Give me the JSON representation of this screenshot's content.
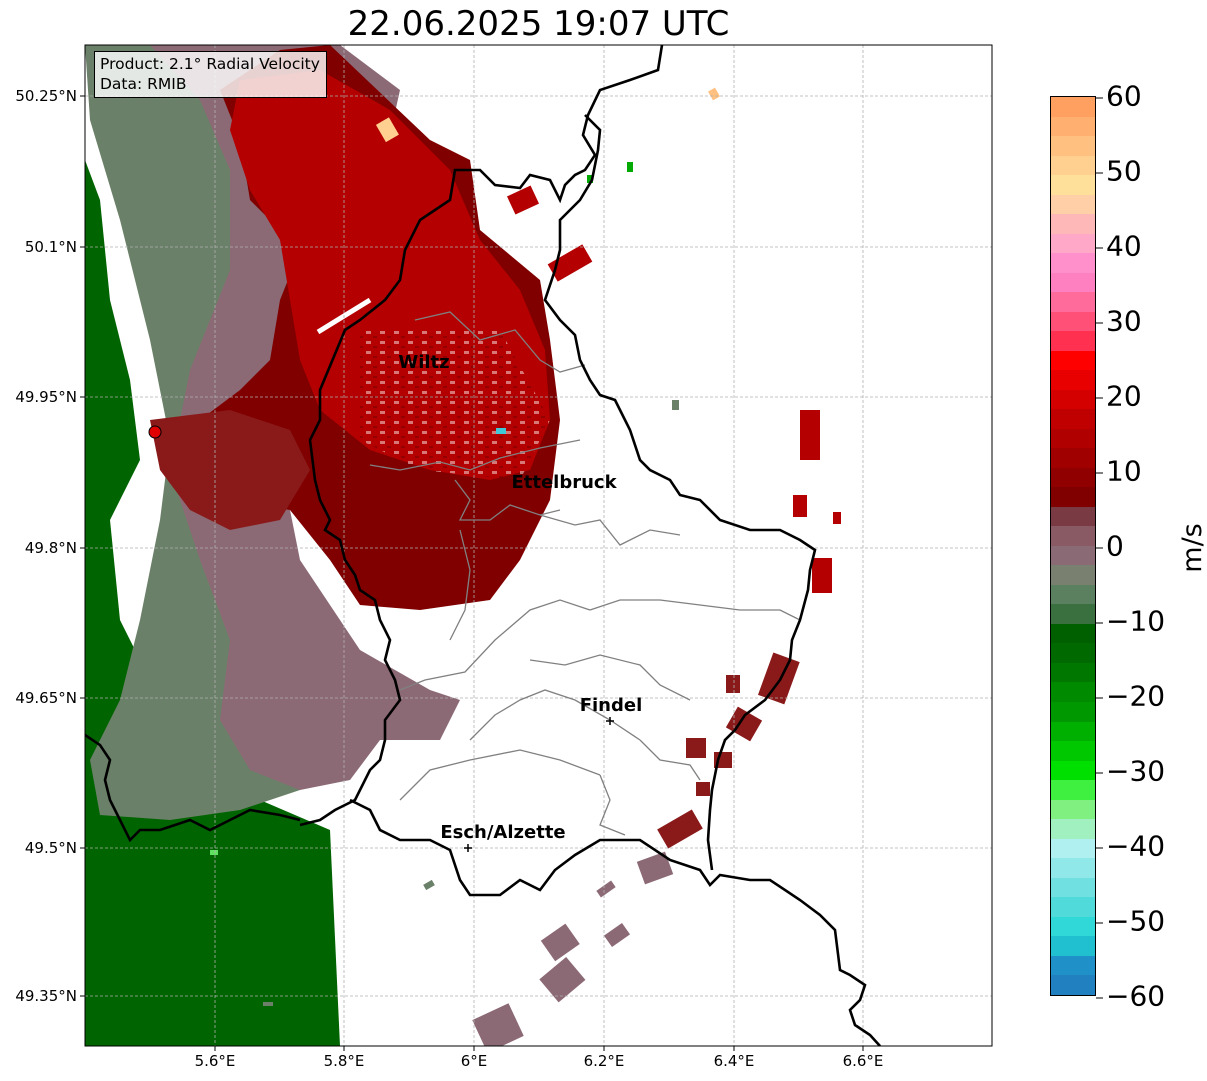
{
  "title": "22.06.2025 19:07 UTC",
  "info": {
    "product": "Product: 2.1° Radial Velocity",
    "source": "Data: RMIB"
  },
  "axes": {
    "x_ticks": [
      "5.6°E",
      "5.8°E",
      "6°E",
      "6.2°E",
      "6.4°E",
      "6.6°E"
    ],
    "y_ticks": [
      "50.25°N",
      "50.1°N",
      "49.95°N",
      "49.8°N",
      "49.65°N",
      "49.5°N",
      "49.35°N"
    ],
    "lon_range": [
      5.4,
      6.8
    ],
    "lat_range": [
      49.3,
      50.3
    ]
  },
  "places": [
    {
      "name": "Wiltz",
      "lon": 5.93,
      "lat": 49.97,
      "marker": false
    },
    {
      "name": "Ettelbruck",
      "lon": 6.1,
      "lat": 49.85,
      "marker": false
    },
    {
      "name": "Findel",
      "lon": 6.21,
      "lat": 49.63,
      "marker": true
    },
    {
      "name": "Esch/Alzette",
      "lon": 5.99,
      "lat": 49.5,
      "marker": true
    }
  ],
  "radar_site": {
    "lon": 5.505,
    "lat": 49.915,
    "color": "#e00000"
  },
  "colorbar": {
    "label": "m/s",
    "ticks": [
      "60",
      "50",
      "40",
      "30",
      "20",
      "10",
      "0",
      "−10",
      "−20",
      "−30",
      "−40",
      "−50",
      "−60"
    ],
    "range": [
      -60,
      60
    ],
    "colors_top_to_bottom": [
      "#ffa060",
      "#ffb070",
      "#ffc080",
      "#ffd090",
      "#ffe09a",
      "#ffd0a8",
      "#ffb8b8",
      "#ffa8c8",
      "#ff90cc",
      "#ff80c0",
      "#ff6c9c",
      "#ff5078",
      "#ff3050",
      "#ff0000",
      "#e80000",
      "#d40000",
      "#c00000",
      "#b00000",
      "#a00000",
      "#900000",
      "#800000",
      "#7a3a44",
      "#8a5a64",
      "#8a6a74",
      "#7a8070",
      "#5a8060",
      "#3a7040",
      "#006000",
      "#006a00",
      "#007800",
      "#008a00",
      "#009800",
      "#00b000",
      "#00c800",
      "#00e000",
      "#40f040",
      "#80f080",
      "#a0f0c0",
      "#b0f0f0",
      "#90e8e8",
      "#70e0e0",
      "#50dada",
      "#30d8d8",
      "#20c0d0",
      "#2090c8",
      "#2080c0"
    ]
  },
  "legend_colors": {
    "strong_red": "#b40000",
    "dark_red": "#800000",
    "mauve": "#8c6a75",
    "greygreen": "#6b8068",
    "green": "#006400",
    "border": "#000000",
    "canton": "#808080"
  }
}
